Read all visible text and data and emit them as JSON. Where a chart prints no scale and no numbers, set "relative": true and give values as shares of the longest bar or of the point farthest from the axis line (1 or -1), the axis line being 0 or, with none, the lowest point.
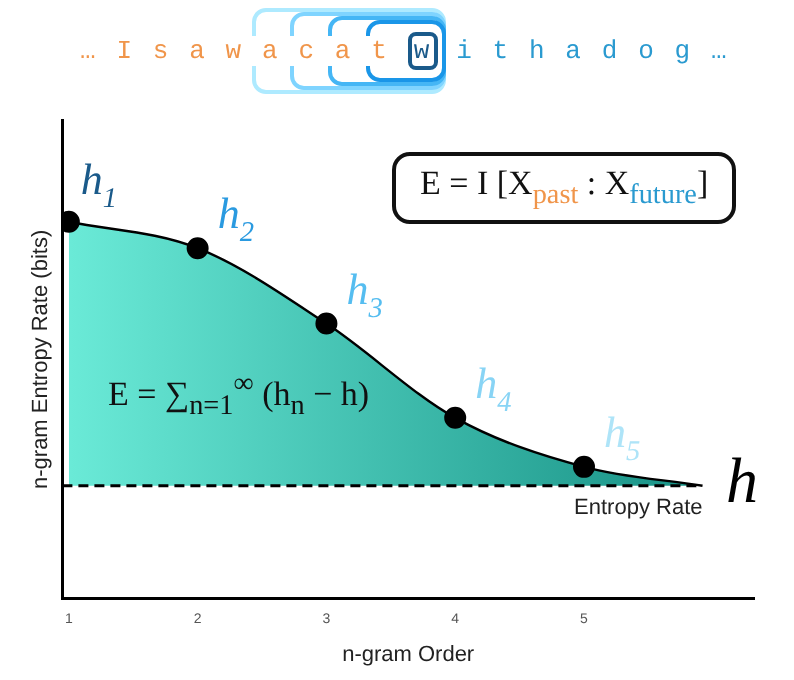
{
  "chart_data": {
    "type": "area",
    "relative": true,
    "xlabel": "n-gram Order",
    "ylabel": "n-gram Entropy Rate (bits)",
    "xlim": [
      0.95,
      6.32
    ],
    "xticks": [
      1,
      2,
      3,
      4,
      5
    ],
    "grid": false,
    "legend": false,
    "series": [
      {
        "x": [
          1,
          2,
          3,
          4,
          5,
          5.92
        ],
        "values": [
          1,
          0.93,
          0.73,
          0.48,
          0.35,
          0.3
        ],
        "color": "#1a9488",
        "marker": "none"
      },
      {
        "type": "scatter",
        "x": [
          1,
          2,
          3,
          4,
          5
        ],
        "values": [
          1,
          0.93,
          0.73,
          0.48,
          0.35
        ],
        "color": "#000000",
        "marker": "circle"
      }
    ],
    "ref_lines": [
      {
        "axis": "y",
        "value": 0.3,
        "label": "Entropy Rate",
        "line_style": "dashed",
        "color": "#000000"
      }
    ],
    "annotations": [
      "… I s a w a c a t",
      "w",
      "i t h a d o g …",
      "E = I [X$_{past}$ : X$_{future}$]",
      "E = ∑$_{n=1}$$^{∞}$ (h$_{n}$ − h)",
      "h",
      {
        "text": "h$_{1}$",
        "x": 1,
        "y": 1
      },
      {
        "text": "h$_{2}$",
        "x": 2,
        "y": 0.93
      },
      {
        "text": "h$_{3}$",
        "x": 3,
        "y": 0.73
      },
      {
        "text": "h$_{4}$",
        "x": 4,
        "y": 0.48
      },
      {
        "text": "h$_{5}$",
        "x": 5,
        "y": 0.35
      }
    ]
  }
}
